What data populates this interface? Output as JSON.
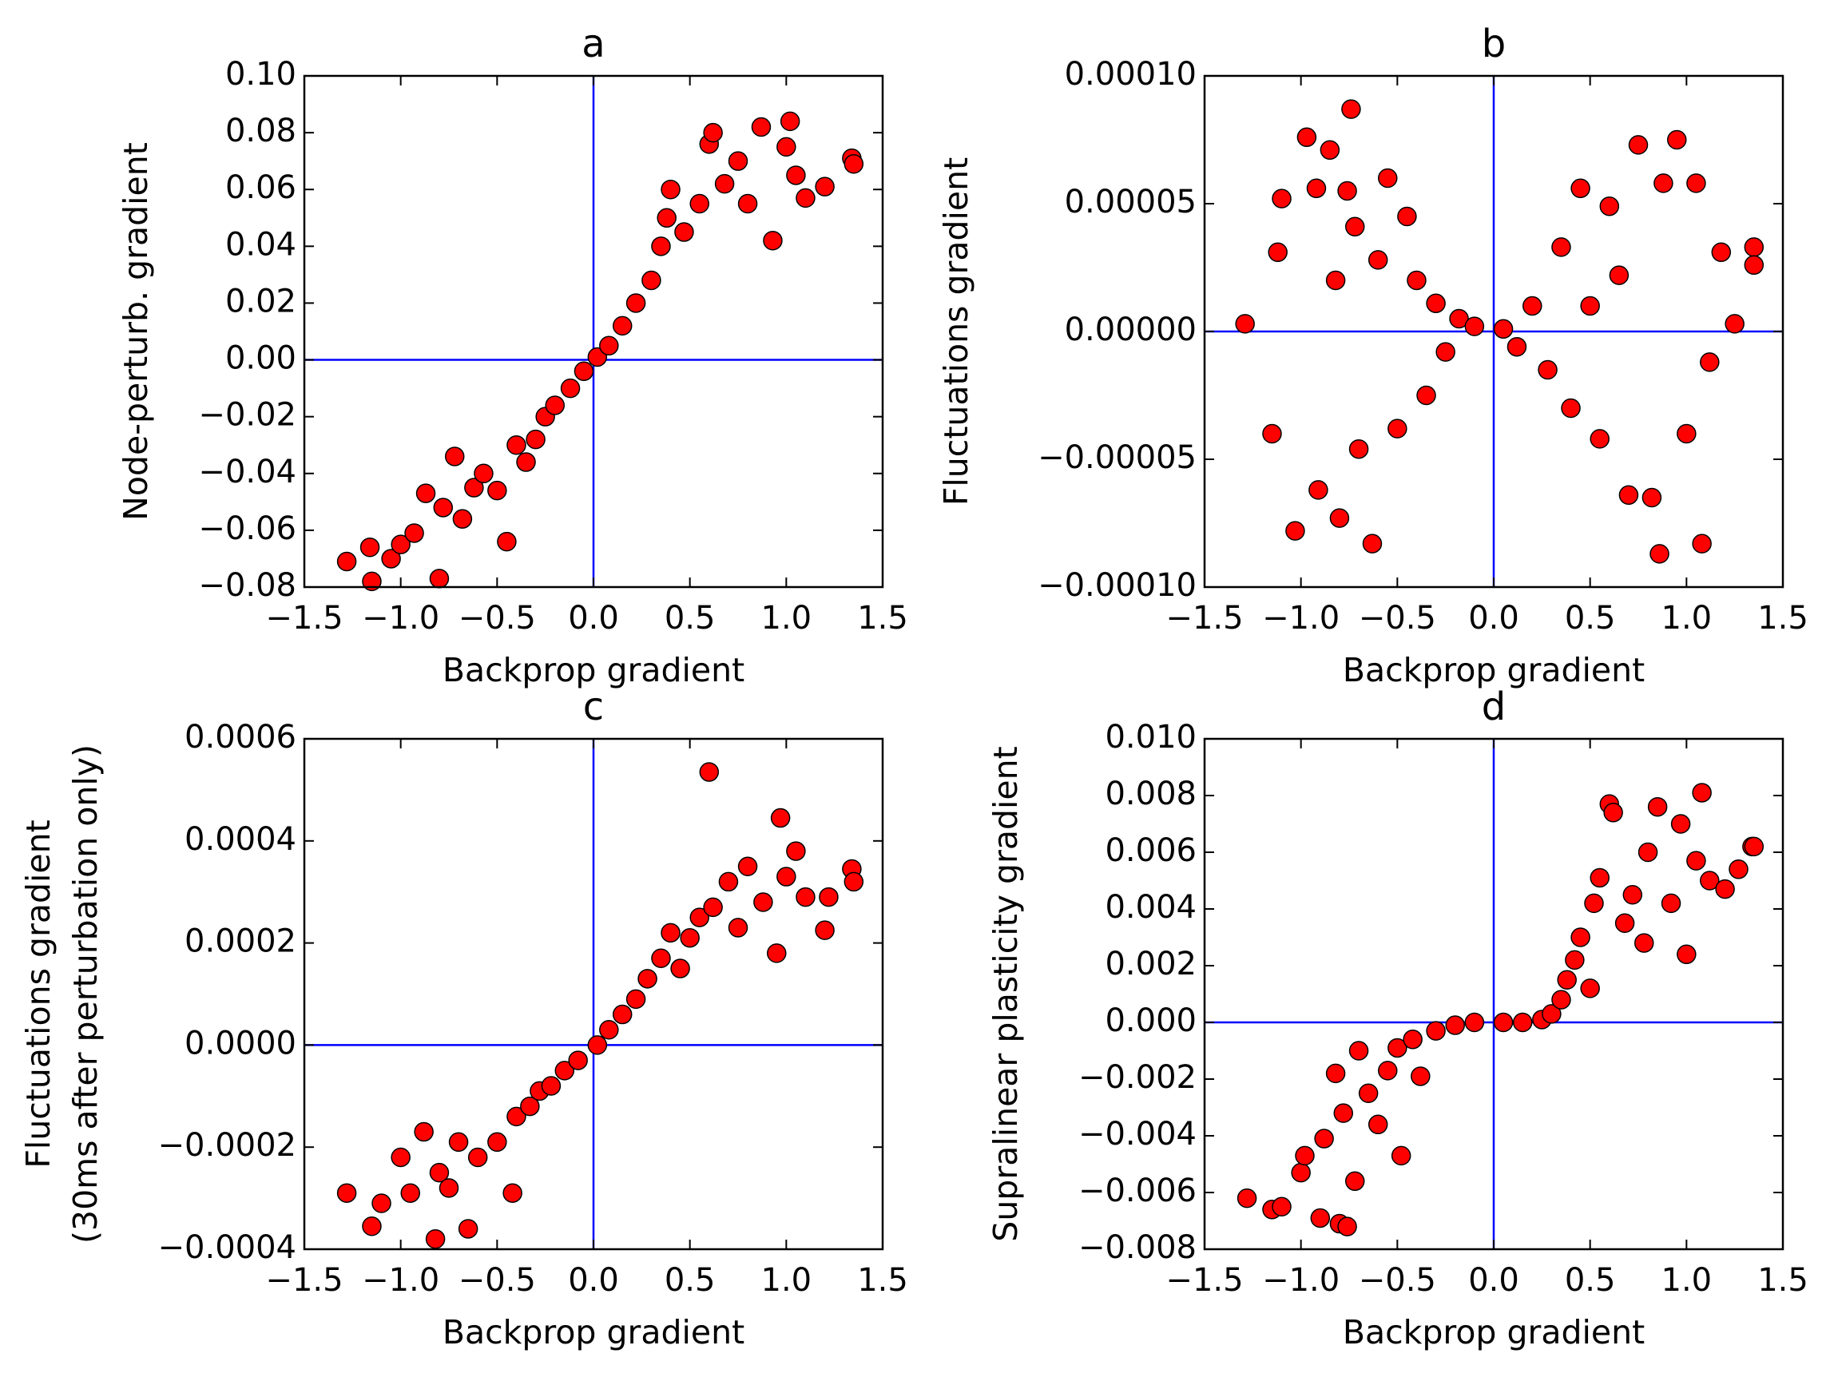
{
  "chart_data": [
    {
      "type": "scatter",
      "title": "a",
      "xlabel": "Backprop gradient",
      "ylabel": "Node-perturb. gradient",
      "color": "#ff0000",
      "reference_lines": {
        "x": 0,
        "y": 0,
        "color": "#0000ff"
      },
      "xlim": [
        -1.5,
        1.5
      ],
      "ylim": [
        -0.08,
        0.1
      ],
      "xticks": [
        {
          "value": -1.5,
          "label": "−1.5"
        },
        {
          "value": -1.0,
          "label": "−1.0"
        },
        {
          "value": -0.5,
          "label": "−0.5"
        },
        {
          "value": 0,
          "label": "0.0"
        },
        0.5,
        {
          "value": 1.0,
          "label": "1.0"
        },
        1.5
      ],
      "yticks": [
        {
          "value": -0.08,
          "label": "−0.08"
        },
        {
          "value": -0.06,
          "label": "−0.06"
        },
        {
          "value": -0.04,
          "label": "−0.04"
        },
        {
          "value": -0.02,
          "label": "−0.02"
        },
        {
          "value": 0,
          "label": "0.00"
        },
        0.02,
        0.04,
        0.06,
        0.08,
        {
          "value": 0.1,
          "label": "0.10"
        }
      ],
      "x": [
        -1.28,
        -1.15,
        -1.16,
        -1.05,
        -1.0,
        -0.93,
        -0.87,
        -0.8,
        -0.78,
        -0.72,
        -0.68,
        -0.62,
        -0.57,
        -0.5,
        -0.45,
        -0.4,
        -0.35,
        -0.3,
        -0.25,
        -0.2,
        -0.12,
        -0.05,
        0.02,
        0.08,
        0.15,
        0.22,
        0.3,
        0.35,
        0.38,
        0.4,
        0.47,
        0.55,
        0.6,
        0.62,
        0.68,
        0.75,
        0.8,
        0.87,
        0.93,
        1.0,
        1.02,
        1.05,
        1.1,
        1.2,
        1.34,
        1.35
      ],
      "values": [
        -0.071,
        -0.078,
        -0.066,
        -0.07,
        -0.065,
        -0.061,
        -0.047,
        -0.077,
        -0.052,
        -0.034,
        -0.056,
        -0.045,
        -0.04,
        -0.046,
        -0.064,
        -0.03,
        -0.036,
        -0.028,
        -0.02,
        -0.016,
        -0.01,
        -0.004,
        0.001,
        0.005,
        0.012,
        0.02,
        0.028,
        0.04,
        0.05,
        0.06,
        0.045,
        0.055,
        0.076,
        0.08,
        0.062,
        0.07,
        0.055,
        0.082,
        0.042,
        0.075,
        0.084,
        0.065,
        0.057,
        0.061,
        0.071,
        0.069
      ]
    },
    {
      "type": "scatter",
      "title": "b",
      "xlabel": "Backprop gradient",
      "ylabel": "Fluctuations gradient",
      "color": "#ff0000",
      "reference_lines": {
        "x": 0,
        "y": 0,
        "color": "#0000ff"
      },
      "xlim": [
        -1.5,
        1.5
      ],
      "ylim": [
        -0.0001,
        0.0001
      ],
      "xticks": [
        {
          "value": -1.5,
          "label": "−1.5"
        },
        {
          "value": -1.0,
          "label": "−1.0"
        },
        {
          "value": -0.5,
          "label": "−0.5"
        },
        {
          "value": 0,
          "label": "0.0"
        },
        0.5,
        {
          "value": 1.0,
          "label": "1.0"
        },
        1.5
      ],
      "yticks": [
        {
          "value": -0.0001,
          "label": "−0.00010"
        },
        {
          "value": -5e-05,
          "label": "−0.00005"
        },
        {
          "value": 0,
          "label": "0.00000"
        },
        {
          "value": 5e-05,
          "label": "0.00005"
        },
        {
          "value": 0.0001,
          "label": "0.00010"
        }
      ],
      "x": [
        -1.29,
        -1.1,
        -1.12,
        -1.15,
        -1.03,
        -0.97,
        -0.92,
        -0.91,
        -0.85,
        -0.82,
        -0.8,
        -0.76,
        -0.74,
        -0.72,
        -0.7,
        -0.63,
        -0.6,
        -0.55,
        -0.5,
        -0.45,
        -0.4,
        -0.35,
        -0.3,
        -0.25,
        -0.18,
        -0.1,
        0.05,
        0.12,
        0.2,
        0.28,
        0.35,
        0.4,
        0.45,
        0.5,
        0.55,
        0.6,
        0.65,
        0.7,
        0.75,
        0.82,
        0.86,
        0.88,
        0.95,
        1.0,
        1.05,
        1.08,
        1.12,
        1.18,
        1.25,
        1.35,
        1.35
      ],
      "values": [
        3e-06,
        5.2e-05,
        3.1e-05,
        -4e-05,
        -7.8e-05,
        7.6e-05,
        5.6e-05,
        -6.2e-05,
        7.1e-05,
        2e-05,
        -7.3e-05,
        5.5e-05,
        8.7e-05,
        4.1e-05,
        -4.6e-05,
        -8.3e-05,
        2.8e-05,
        6e-05,
        -3.8e-05,
        4.5e-05,
        2e-05,
        -2.5e-05,
        1.1e-05,
        -8e-06,
        5e-06,
        2e-06,
        1e-06,
        -6e-06,
        1e-05,
        -1.5e-05,
        3.3e-05,
        -3e-05,
        5.6e-05,
        1e-05,
        -4.2e-05,
        4.9e-05,
        2.2e-05,
        -6.4e-05,
        7.3e-05,
        -6.5e-05,
        -8.7e-05,
        5.8e-05,
        7.5e-05,
        -4e-05,
        5.8e-05,
        -8.3e-05,
        -1.2e-05,
        3.1e-05,
        3e-06,
        3.3e-05,
        2.6e-05
      ]
    },
    {
      "type": "scatter",
      "title": "c",
      "xlabel": "Backprop gradient",
      "ylabel": [
        "Fluctuations gradient",
        "(30ms after perturbation only)"
      ],
      "color": "#ff0000",
      "reference_lines": {
        "x": 0,
        "y": 0,
        "color": "#0000ff"
      },
      "xlim": [
        -1.5,
        1.5
      ],
      "ylim": [
        -0.0004,
        0.0006
      ],
      "xticks": [
        {
          "value": -1.5,
          "label": "−1.5"
        },
        {
          "value": -1.0,
          "label": "−1.0"
        },
        {
          "value": -0.5,
          "label": "−0.5"
        },
        {
          "value": 0,
          "label": "0.0"
        },
        0.5,
        {
          "value": 1.0,
          "label": "1.0"
        },
        1.5
      ],
      "yticks": [
        {
          "value": -0.0004,
          "label": "−0.0004"
        },
        {
          "value": -0.0002,
          "label": "−0.0002"
        },
        {
          "value": 0,
          "label": "0.0000"
        },
        0.0002,
        0.0004,
        0.0006
      ],
      "x": [
        -1.28,
        -1.15,
        -1.1,
        -1.0,
        -0.95,
        -0.88,
        -0.82,
        -0.8,
        -0.75,
        -0.7,
        -0.65,
        -0.6,
        -0.5,
        -0.42,
        -0.4,
        -0.33,
        -0.28,
        -0.22,
        -0.15,
        -0.08,
        0.02,
        0.08,
        0.15,
        0.22,
        0.28,
        0.35,
        0.4,
        0.45,
        0.5,
        0.55,
        0.6,
        0.62,
        0.7,
        0.75,
        0.8,
        0.88,
        0.95,
        0.97,
        1.0,
        1.05,
        1.1,
        1.2,
        1.22,
        1.34,
        1.35
      ],
      "values": [
        -0.00029,
        -0.000355,
        -0.00031,
        -0.00022,
        -0.00029,
        -0.00017,
        -0.00038,
        -0.00025,
        -0.00028,
        -0.00019,
        -0.00036,
        -0.00022,
        -0.00019,
        -0.00029,
        -0.00014,
        -0.00012,
        -9e-05,
        -8e-05,
        -5e-05,
        -3e-05,
        0.0,
        3e-05,
        6e-05,
        9e-05,
        0.00013,
        0.00017,
        0.00022,
        0.00015,
        0.00021,
        0.00025,
        0.000535,
        0.00027,
        0.00032,
        0.00023,
        0.00035,
        0.00028,
        0.00018,
        0.000445,
        0.00033,
        0.00038,
        0.00029,
        0.000225,
        0.00029,
        0.000345,
        0.00032
      ]
    },
    {
      "type": "scatter",
      "title": "d",
      "xlabel": "Backprop gradient",
      "ylabel": "Supralinear plasticity gradient",
      "color": "#ff0000",
      "reference_lines": {
        "x": 0,
        "y": 0,
        "color": "#0000ff"
      },
      "xlim": [
        -1.5,
        1.5
      ],
      "ylim": [
        -0.008,
        0.01
      ],
      "xticks": [
        {
          "value": -1.5,
          "label": "−1.5"
        },
        {
          "value": -1.0,
          "label": "−1.0"
        },
        {
          "value": -0.5,
          "label": "−0.5"
        },
        {
          "value": 0,
          "label": "0.0"
        },
        0.5,
        {
          "value": 1.0,
          "label": "1.0"
        },
        1.5
      ],
      "yticks": [
        {
          "value": -0.008,
          "label": "−0.008"
        },
        {
          "value": -0.006,
          "label": "−0.006"
        },
        {
          "value": -0.004,
          "label": "−0.004"
        },
        {
          "value": -0.002,
          "label": "−0.002"
        },
        {
          "value": 0,
          "label": "0.000"
        },
        0.002,
        0.004,
        0.006,
        0.008,
        {
          "value": 0.01,
          "label": "0.010"
        }
      ],
      "x": [
        -1.28,
        -1.15,
        -1.1,
        -1.0,
        -0.98,
        -0.9,
        -0.88,
        -0.82,
        -0.8,
        -0.78,
        -0.76,
        -0.72,
        -0.7,
        -0.65,
        -0.6,
        -0.55,
        -0.5,
        -0.48,
        -0.42,
        -0.38,
        -0.3,
        -0.2,
        -0.1,
        0.05,
        0.15,
        0.25,
        0.3,
        0.35,
        0.38,
        0.42,
        0.45,
        0.5,
        0.52,
        0.55,
        0.6,
        0.62,
        0.68,
        0.72,
        0.78,
        0.8,
        0.85,
        0.92,
        0.97,
        1.0,
        1.05,
        1.08,
        1.12,
        1.2,
        1.27,
        1.34,
        1.35
      ],
      "values": [
        -0.0062,
        -0.0066,
        -0.0065,
        -0.0053,
        -0.0047,
        -0.0069,
        -0.0041,
        -0.0018,
        -0.0071,
        -0.0032,
        -0.0072,
        -0.0056,
        -0.001,
        -0.0025,
        -0.0036,
        -0.0017,
        -0.0009,
        -0.0047,
        -0.0006,
        -0.0019,
        -0.0003,
        -0.0001,
        0.0,
        0.0,
        0.0,
        0.0001,
        0.0003,
        0.0008,
        0.0015,
        0.0022,
        0.003,
        0.0012,
        0.0042,
        0.0051,
        0.0077,
        0.0074,
        0.0035,
        0.0045,
        0.0028,
        0.006,
        0.0076,
        0.0042,
        0.007,
        0.0024,
        0.0057,
        0.0081,
        0.005,
        0.0047,
        0.0054,
        0.0062,
        0.0062
      ]
    }
  ]
}
